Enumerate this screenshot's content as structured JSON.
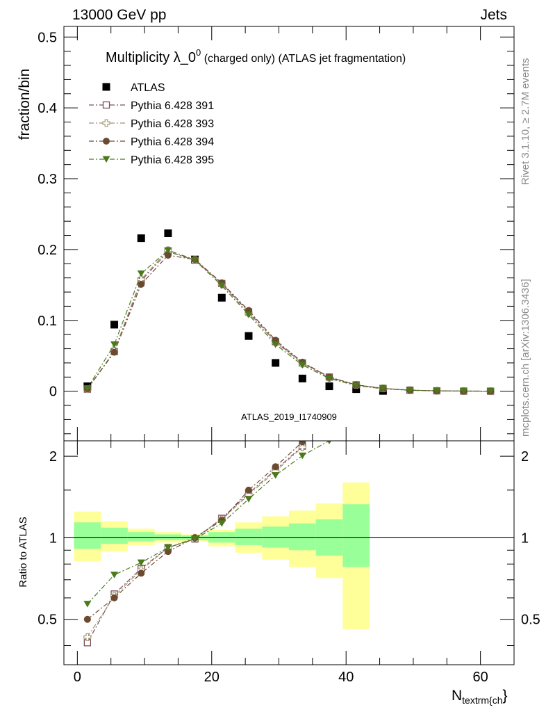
{
  "header": {
    "left": "13000 GeV pp",
    "right": "Jets"
  },
  "side": {
    "top": "Rivet 3.1.10, ≥ 2.7M events",
    "bottom": "mcplots.cern.ch [arXiv:1306.3436]"
  },
  "main": {
    "title_main": "Multiplicity λ_0",
    "title_sup": "0",
    "title_suffix": " (charged only) (ATLAS jet fragmentation)",
    "ylabel": "fraction/bin",
    "watermark": "ATLAS_2019_I1740909"
  },
  "ratio": {
    "ylabel": "Ratio to ATLAS"
  },
  "xlabel_main": "N",
  "xlabel_sub": "textrm{ch",
  "xlabel_close": "}",
  "chart_data": [
    {
      "type": "scatter",
      "panel": "main",
      "title": "Multiplicity λ_0^0 (charged only) (ATLAS jet fragmentation)",
      "xlabel": "N_textrm{ch}",
      "ylabel": "fraction/bin",
      "xlim": [
        -2,
        65
      ],
      "ylim": [
        -0.07,
        0.515
      ],
      "x_ticks": [
        0,
        20,
        40,
        60
      ],
      "y_ticks": [
        0,
        0.1,
        0.2,
        0.3,
        0.4,
        0.5
      ],
      "y_tick_labels": [
        "0",
        "0.1",
        "0.2",
        "0.3",
        "0.4",
        "0.5"
      ],
      "legend_position": "top-left",
      "x": [
        1.5,
        5.5,
        9.5,
        13.5,
        17.5,
        21.5,
        25.5,
        29.5,
        33.5,
        37.5,
        41.5,
        45.5,
        49.5,
        53.5,
        57.5,
        61.5
      ],
      "series": [
        {
          "name": "ATLAS",
          "color": "#000000",
          "marker": "square-filled",
          "values": [
            0.007,
            0.094,
            0.216,
            0.223,
            0.186,
            0.132,
            0.078,
            0.04,
            0.018,
            0.007,
            0.003,
            0.0005,
            null,
            null,
            null,
            null
          ]
        },
        {
          "name": "Pythia 6.428 391",
          "color": "#7a4f5f",
          "marker": "square-open",
          "line": "dashdot",
          "values": [
            0.003,
            0.056,
            0.156,
            0.197,
            0.185,
            0.152,
            0.112,
            0.07,
            0.04,
            0.02,
            0.009,
            0.004,
            0.0015,
            0.0006,
            0.0002,
            0.0001
          ]
        },
        {
          "name": "Pythia 6.428 393",
          "color": "#a09070",
          "marker": "cross-open",
          "line": "dashdot",
          "values": [
            0.003,
            0.057,
            0.158,
            0.199,
            0.186,
            0.151,
            0.11,
            0.069,
            0.039,
            0.019,
            0.009,
            0.004,
            0.0015,
            0.0006,
            0.0002,
            0.0001
          ]
        },
        {
          "name": "Pythia 6.428 394",
          "color": "#6b4a30",
          "marker": "circle-filled",
          "line": "dashdot",
          "values": [
            0.0035,
            0.055,
            0.151,
            0.192,
            0.186,
            0.153,
            0.114,
            0.072,
            0.041,
            0.02,
            0.009,
            0.004,
            0.0015,
            0.0006,
            0.0002,
            0.0001
          ]
        },
        {
          "name": "Pythia 6.428 395",
          "color": "#4a7a1a",
          "marker": "triangle-down-filled",
          "line": "dashdot",
          "values": [
            0.004,
            0.066,
            0.166,
            0.199,
            0.185,
            0.149,
            0.108,
            0.066,
            0.037,
            0.018,
            0.008,
            0.0035,
            0.0013,
            0.0005,
            0.0002,
            0.0001
          ]
        }
      ]
    },
    {
      "type": "scatter",
      "panel": "ratio",
      "ylabel": "Ratio to ATLAS",
      "xlabel": "N_textrm{ch}",
      "xlim": [
        -2,
        65
      ],
      "ylim": [
        0.34,
        2.28
      ],
      "y_scale": "log",
      "y_ticks": [
        0.5,
        1,
        2
      ],
      "y_tick_labels": [
        "0.5",
        "1",
        "2"
      ],
      "x_ticks": [
        0,
        20,
        40,
        60
      ],
      "x_tick_labels": [
        "0",
        "20",
        "40",
        "60"
      ],
      "bins": [
        [
          -0.5,
          3.5
        ],
        [
          3.5,
          7.5
        ],
        [
          7.5,
          11.5
        ],
        [
          11.5,
          15.5
        ],
        [
          15.5,
          19.5
        ],
        [
          19.5,
          23.5
        ],
        [
          23.5,
          27.5
        ],
        [
          27.5,
          31.5
        ],
        [
          31.5,
          35.5
        ],
        [
          35.5,
          39.5
        ],
        [
          39.5,
          43.5
        ]
      ],
      "band_inner": [
        [
          0.91,
          1.14
        ],
        [
          0.95,
          1.09
        ],
        [
          0.97,
          1.05
        ],
        [
          0.98,
          1.03
        ],
        [
          0.98,
          1.02
        ],
        [
          0.96,
          1.05
        ],
        [
          0.94,
          1.08
        ],
        [
          0.92,
          1.1
        ],
        [
          0.9,
          1.13
        ],
        [
          0.86,
          1.17
        ],
        [
          0.78,
          1.33
        ]
      ],
      "band_outer": [
        [
          0.82,
          1.25
        ],
        [
          0.89,
          1.15
        ],
        [
          0.94,
          1.08
        ],
        [
          0.96,
          1.05
        ],
        [
          0.97,
          1.03
        ],
        [
          0.93,
          1.07
        ],
        [
          0.88,
          1.14
        ],
        [
          0.83,
          1.2
        ],
        [
          0.78,
          1.26
        ],
        [
          0.71,
          1.34
        ],
        [
          0.46,
          1.6
        ]
      ],
      "x": [
        1.5,
        5.5,
        9.5,
        13.5,
        17.5,
        21.5,
        25.5,
        29.5,
        33.5,
        37.5
      ],
      "series": [
        {
          "name": "Pythia 6.428 391",
          "color": "#7a4f5f",
          "marker": "square-open",
          "values": [
            0.41,
            0.62,
            0.77,
            0.92,
            0.99,
            1.18,
            1.46,
            1.78,
            2.18,
            null
          ]
        },
        {
          "name": "Pythia 6.428 393",
          "color": "#a09070",
          "marker": "cross-open",
          "values": [
            0.43,
            0.61,
            0.76,
            0.92,
            1.0,
            1.17,
            1.44,
            1.76,
            2.16,
            null
          ]
        },
        {
          "name": "Pythia 6.428 394",
          "color": "#6b4a30",
          "marker": "circle-filled",
          "values": [
            0.5,
            0.6,
            0.74,
            0.89,
            1.0,
            1.16,
            1.5,
            1.83,
            2.26,
            null
          ]
        },
        {
          "name": "Pythia 6.428 395",
          "color": "#4a7a1a",
          "marker": "triangle-down-filled",
          "values": [
            0.57,
            0.73,
            0.81,
            0.92,
            0.99,
            1.13,
            1.39,
            1.7,
            2.01,
            2.28
          ]
        }
      ]
    }
  ]
}
